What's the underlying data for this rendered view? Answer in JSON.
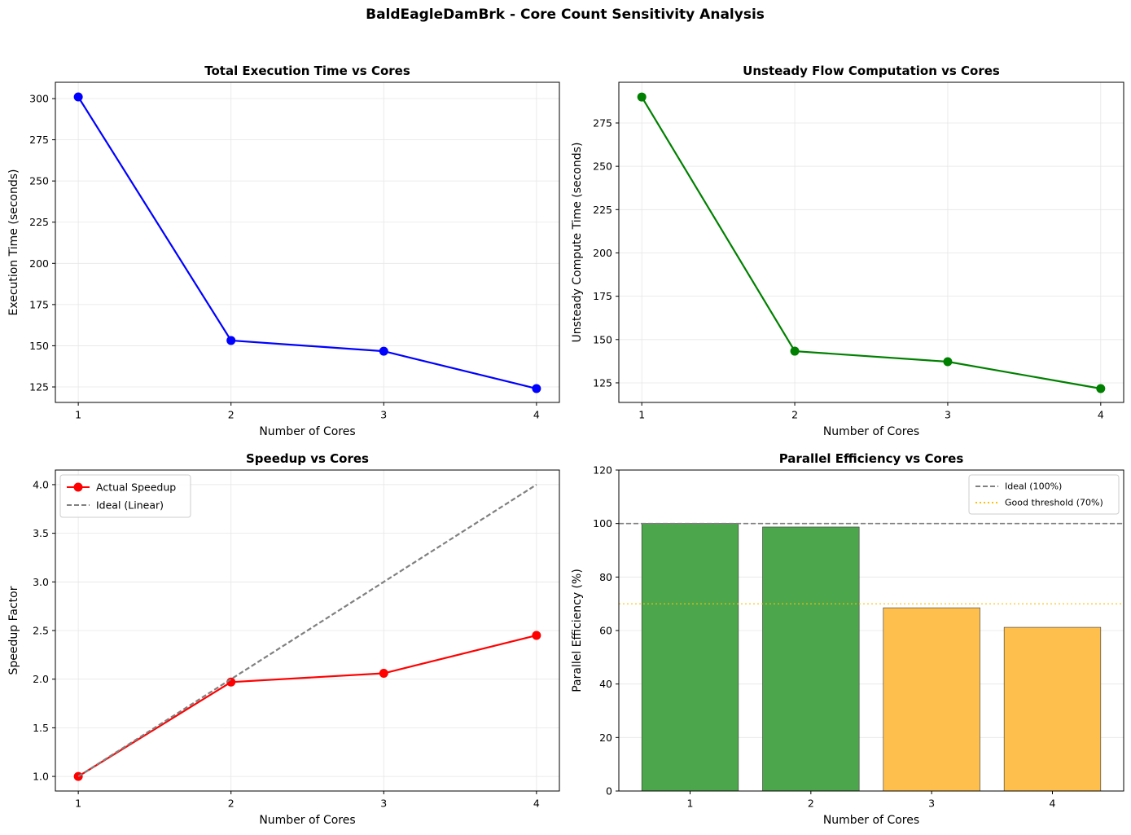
{
  "title": "BaldEagleDamBrk - Core Count Sensitivity Analysis",
  "chart_data": [
    {
      "type": "line",
      "title": "Total Execution Time vs Cores",
      "x_label": "Number of Cores",
      "y_label": "Execution Time (seconds)",
      "x": [
        1,
        2,
        3,
        4
      ],
      "values": [
        301.0,
        153.2,
        146.7,
        124.0
      ],
      "color": "#0000ff",
      "marker": true,
      "linestyle": "solid",
      "xlim": [
        0.85,
        4.15
      ],
      "xticks": [
        1,
        2,
        3,
        4
      ],
      "ylim": [
        115.6,
        309.9
      ],
      "yticks": [
        125,
        150,
        175,
        200,
        225,
        250,
        275,
        300
      ],
      "grid": true
    },
    {
      "type": "line",
      "title": "Unsteady Flow Computation vs Cores",
      "x_label": "Number of Cores",
      "y_label": "Unsteady Compute Time (seconds)",
      "x": [
        1,
        2,
        3,
        4
      ],
      "values": [
        290.0,
        143.3,
        137.2,
        121.7
      ],
      "color": "#008000",
      "marker": true,
      "linestyle": "solid",
      "xlim": [
        0.85,
        4.15
      ],
      "xticks": [
        1,
        2,
        3,
        4
      ],
      "ylim": [
        113.7,
        298.5
      ],
      "yticks": [
        125,
        150,
        175,
        200,
        225,
        250,
        275
      ],
      "grid": true
    },
    {
      "type": "line",
      "title": "Speedup vs Cores",
      "x_label": "Number of Cores",
      "y_label": "Speedup Factor",
      "x": [
        1,
        2,
        3,
        4
      ],
      "series": [
        {
          "name": "Actual Speedup",
          "color": "#ff0000",
          "marker": true,
          "linestyle": "solid",
          "values": [
            1.0,
            1.97,
            2.06,
            2.45
          ]
        },
        {
          "name": "Ideal (Linear)",
          "color": "#808080",
          "marker": false,
          "linestyle": "dashed",
          "values": [
            1,
            2,
            3,
            4
          ]
        }
      ],
      "legend": "upper left",
      "xlim": [
        0.85,
        4.15
      ],
      "xticks": [
        1,
        2,
        3,
        4
      ],
      "ylim": [
        0.85,
        4.15
      ],
      "yticks": [
        {
          "value": 1,
          "label": "1.0"
        },
        1.5,
        {
          "value": 2,
          "label": "2.0"
        },
        2.5,
        {
          "value": 3,
          "label": "3.0"
        },
        3.5,
        {
          "value": 4,
          "label": "4.0"
        }
      ],
      "grid": true
    },
    {
      "type": "bar",
      "title": "Parallel Efficiency vs Cores",
      "x_label": "Number of Cores",
      "y_label": "Parallel Efficiency (%)",
      "categories": [
        "1",
        "2",
        "3",
        "4"
      ],
      "values": [
        100,
        98.7,
        68.5,
        61.2
      ],
      "colors": [
        "#4ca64c",
        "#4ca64c",
        "#ffbf4c",
        "#ffbf4c"
      ],
      "reference_lines": [
        {
          "name": "Ideal (100%)",
          "value": 100,
          "color": "#808080",
          "linestyle": "dashed"
        },
        {
          "name": "Good threshold (70%)",
          "value": 70,
          "color": "#ffbf00",
          "linestyle": "dotted"
        }
      ],
      "legend": "upper right",
      "ylim": [
        0,
        120
      ],
      "yticks": [
        0,
        20,
        40,
        60,
        80,
        100,
        120
      ],
      "grid": true
    }
  ]
}
